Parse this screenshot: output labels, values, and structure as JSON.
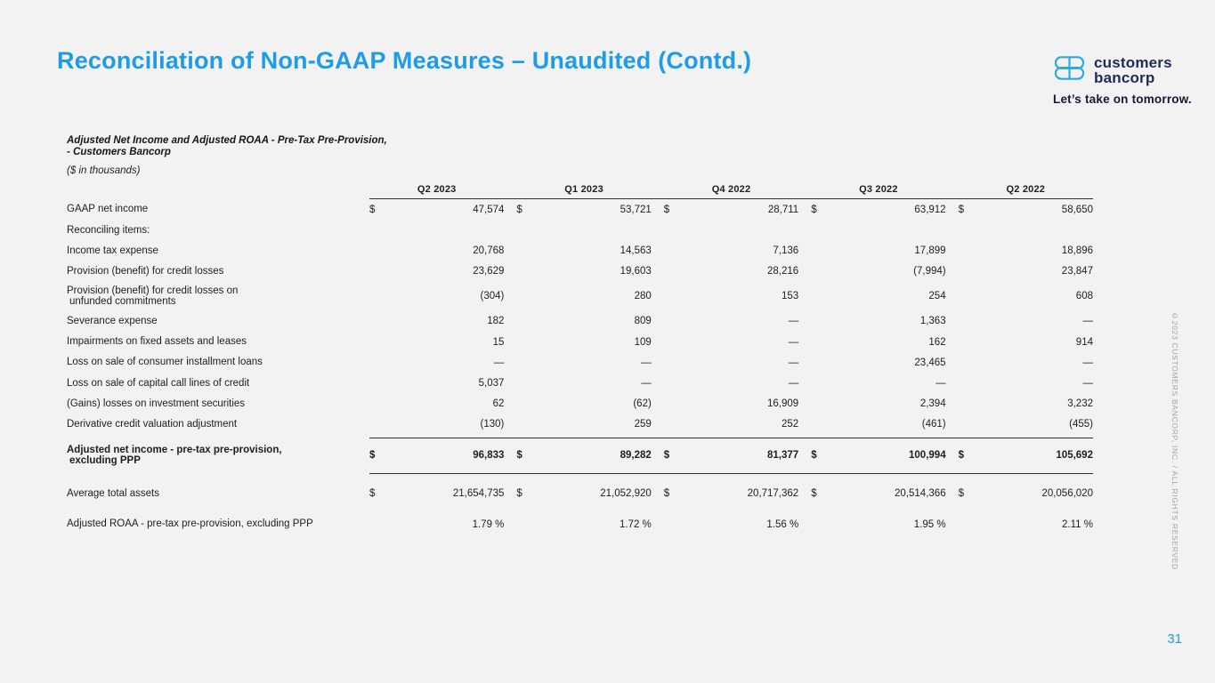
{
  "slide": {
    "title": "Reconciliation of Non-GAAP Measures – Unaudited (Contd.)",
    "page_number": "31",
    "copyright_vertical": "©2023 CUSTOMERS BANCORP, INC. / ALL RIGHTS RESERVED",
    "accent_blue": "#1e9ce8",
    "background": "#f2f2f3"
  },
  "logo": {
    "icon": "customers-bancorp-mark",
    "name_line1": "customers",
    "name_line2": "bancorp",
    "tagline": "Let’s take on tomorrow.",
    "brand_navy": "#1e2b58",
    "brand_blue": "#2aa9e2"
  },
  "table": {
    "title_line1": "Adjusted Net Income and Adjusted ROAA - Pre-Tax Pre-Provision,",
    "title_line2": "- Customers Bancorp",
    "units_note": "($ in thousands)",
    "currency_symbol": "$",
    "columns": [
      "Q2 2023",
      "Q1 2023",
      "Q4 2022",
      "Q3 2022",
      "Q2 2022"
    ],
    "rows": [
      {
        "label": "GAAP net income",
        "dollar": true,
        "values": [
          "47,574",
          "53,721",
          "28,711",
          "63,912",
          "58,650"
        ]
      },
      {
        "label": "Reconciling items:",
        "values": [
          "",
          "",
          "",
          "",
          ""
        ]
      },
      {
        "label": "Income tax expense",
        "values": [
          "20,768",
          "14,563",
          "7,136",
          "17,899",
          "18,896"
        ]
      },
      {
        "label": "Provision (benefit) for credit losses",
        "values": [
          "23,629",
          "19,603",
          "28,216",
          "(7,994)",
          "23,847"
        ]
      },
      {
        "label": "Provision (benefit) for credit losses on",
        "label2": "unfunded commitments",
        "values": [
          "(304)",
          "280",
          "153",
          "254",
          "608"
        ]
      },
      {
        "label": "Severance expense",
        "values": [
          "182",
          "809",
          "—",
          "1,363",
          "—"
        ]
      },
      {
        "label": "Impairments on fixed assets and leases",
        "values": [
          "15",
          "109",
          "—",
          "162",
          "914"
        ]
      },
      {
        "label": "Loss on sale of consumer installment loans",
        "values": [
          "—",
          "—",
          "—",
          "23,465",
          "—"
        ]
      },
      {
        "label": "Loss on sale of capital call lines of credit",
        "values": [
          "5,037",
          "—",
          "—",
          "—",
          "—"
        ]
      },
      {
        "label": "(Gains) losses on investment securities",
        "values": [
          "62",
          "(62)",
          "16,909",
          "2,394",
          "3,232"
        ]
      },
      {
        "label": "Derivative credit valuation adjustment",
        "values": [
          "(130)",
          "259",
          "252",
          "(461)",
          "(455)"
        ]
      },
      {
        "label": "Adjusted net income - pre-tax pre-provision,",
        "label2": "excluding PPP",
        "bold": true,
        "dollar": true,
        "line_above": true,
        "line_below": true,
        "values": [
          "96,833",
          "89,282",
          "81,377",
          "100,994",
          "105,692"
        ]
      },
      {
        "label": "Average total assets",
        "dollar": true,
        "spacer_above": true,
        "values": [
          "21,654,735",
          "21,052,920",
          "20,717,362",
          "20,514,366",
          "20,056,020"
        ]
      },
      {
        "label": "Adjusted ROAA - pre-tax pre-provision, excluding PPP",
        "spacer_above": true,
        "values": [
          "1.79 %",
          "1.72 %",
          "1.56 %",
          "1.95 %",
          "2.11 %"
        ]
      }
    ]
  }
}
